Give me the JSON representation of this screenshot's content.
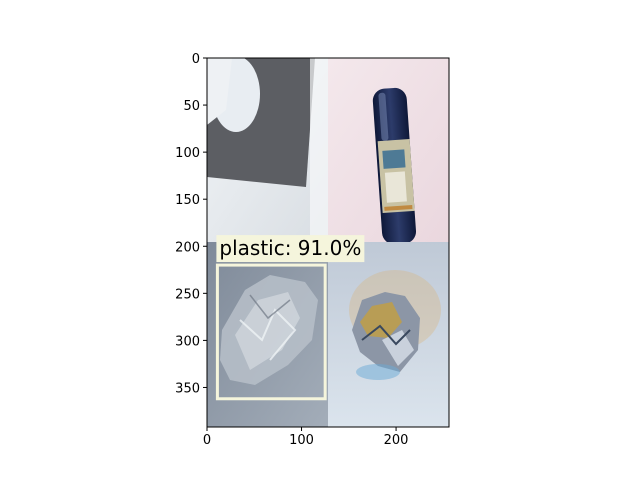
{
  "figure": {
    "x_ticks": [
      "0",
      "100",
      "200"
    ],
    "y_ticks": [
      "0",
      "50",
      "100",
      "150",
      "200",
      "250",
      "300",
      "350"
    ],
    "x_range": [
      0,
      256
    ],
    "y_range": [
      392,
      0
    ]
  },
  "tiles": [
    {
      "name": "paper-sheet",
      "quadrant": "top-left"
    },
    {
      "name": "plastic-bottle",
      "quadrant": "top-right"
    },
    {
      "name": "crumpled-plastic",
      "quadrant": "bottom-left"
    },
    {
      "name": "crumpled-foil",
      "quadrant": "bottom-right"
    }
  ],
  "detection": {
    "label": "plastic: 91.0%",
    "class": "plastic",
    "confidence": 91.0,
    "box": {
      "x0": 11,
      "y0": 220,
      "x1": 125,
      "y1": 362
    },
    "color": "#f5f5dc"
  },
  "colors": {
    "paper_bg": "#e4e9ee",
    "paper_dark": "#5c5e63",
    "bottle_bg": "#f0e1e6",
    "bottle": "#1c2a52",
    "plastic_bg": "#8b95a3",
    "foil_bg": "#c9d4e0",
    "foil": "#a89a5a"
  }
}
